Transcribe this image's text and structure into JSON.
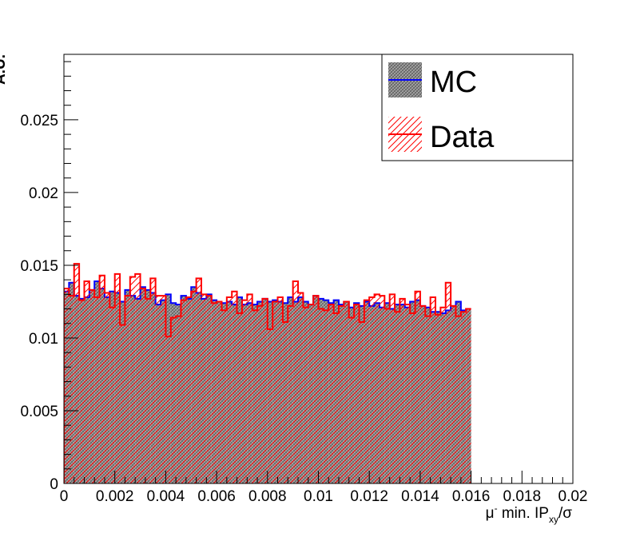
{
  "chart_data": {
    "type": "histogram",
    "xlabel": {
      "main": "μ",
      "sup": "-",
      "middle": " min. IP",
      "sub": "xy",
      "tail": "/σ"
    },
    "ylabel": "A.U.",
    "xlim": [
      0,
      0.02
    ],
    "ylim": [
      0,
      0.0295
    ],
    "x_ticks": [
      {
        "value": 0,
        "label": "0"
      },
      {
        "value": 0.002,
        "label": "0.002"
      },
      {
        "value": 0.004,
        "label": "0.004"
      },
      {
        "value": 0.006,
        "label": "0.006"
      },
      {
        "value": 0.008,
        "label": "0.008"
      },
      {
        "value": 0.01,
        "label": "0.01"
      },
      {
        "value": 0.012,
        "label": "0.012"
      },
      {
        "value": 0.014,
        "label": "0.014"
      },
      {
        "value": 0.016,
        "label": "0.016"
      },
      {
        "value": 0.018,
        "label": "0.018"
      },
      {
        "value": 0.02,
        "label": "0.02"
      }
    ],
    "y_ticks": [
      {
        "value": 0,
        "label": "0"
      },
      {
        "value": 0.005,
        "label": "0.005"
      },
      {
        "value": 0.01,
        "label": "0.01"
      },
      {
        "value": 0.015,
        "label": "0.015"
      },
      {
        "value": 0.02,
        "label": "0.02"
      },
      {
        "value": 0.025,
        "label": "0.025"
      }
    ],
    "bin_edges_start": 0,
    "bin_width": 0.0002,
    "legend_position": "top-right",
    "series": [
      {
        "name": "MC",
        "color": "#0000ff",
        "fill": "crosshatch-gray",
        "values": [
          0.0132,
          0.0138,
          0.0129,
          0.0127,
          0.0128,
          0.0133,
          0.0139,
          0.0134,
          0.0128,
          0.0132,
          0.0131,
          0.0125,
          0.0133,
          0.0129,
          0.0127,
          0.0135,
          0.0133,
          0.0131,
          0.0123,
          0.0126,
          0.013,
          0.0124,
          0.0123,
          0.0129,
          0.0127,
          0.0135,
          0.0131,
          0.0127,
          0.013,
          0.0126,
          0.0125,
          0.0124,
          0.0125,
          0.0123,
          0.0128,
          0.0123,
          0.0124,
          0.0123,
          0.0125,
          0.0127,
          0.0125,
          0.0126,
          0.0125,
          0.0124,
          0.0128,
          0.0125,
          0.0128,
          0.0125,
          0.0123,
          0.0129,
          0.0127,
          0.0126,
          0.0124,
          0.0126,
          0.0123,
          0.0125,
          0.0121,
          0.0124,
          0.0122,
          0.0125,
          0.0122,
          0.0124,
          0.0121,
          0.0124,
          0.012,
          0.0123,
          0.0123,
          0.0121,
          0.0125,
          0.0126,
          0.0122,
          0.0121,
          0.0118,
          0.0118,
          0.0117,
          0.0119,
          0.0122,
          0.0125,
          0.0119,
          0.012
        ]
      },
      {
        "name": "Data",
        "color": "#ff0000",
        "fill": "hatch-red",
        "values": [
          0.0134,
          0.0129,
          0.0151,
          0.0126,
          0.0139,
          0.0133,
          0.0128,
          0.0143,
          0.0131,
          0.0121,
          0.0144,
          0.0109,
          0.0129,
          0.0142,
          0.0144,
          0.0134,
          0.0127,
          0.0141,
          0.0129,
          0.0129,
          0.0101,
          0.0114,
          0.0115,
          0.0126,
          0.0128,
          0.0132,
          0.0141,
          0.013,
          0.0129,
          0.0124,
          0.0125,
          0.0119,
          0.0128,
          0.0132,
          0.0117,
          0.0126,
          0.013,
          0.0119,
          0.0122,
          0.0127,
          0.0106,
          0.0125,
          0.0128,
          0.0111,
          0.0122,
          0.0139,
          0.0131,
          0.0121,
          0.0123,
          0.0129,
          0.012,
          0.0119,
          0.0123,
          0.0117,
          0.0122,
          0.0125,
          0.0114,
          0.0123,
          0.0111,
          0.0126,
          0.0128,
          0.013,
          0.0129,
          0.012,
          0.013,
          0.0118,
          0.0127,
          0.0123,
          0.0117,
          0.0132,
          0.0122,
          0.0115,
          0.0128,
          0.0116,
          0.0121,
          0.0138,
          0.0122,
          0.0115,
          0.0118,
          0.012
        ]
      }
    ]
  }
}
